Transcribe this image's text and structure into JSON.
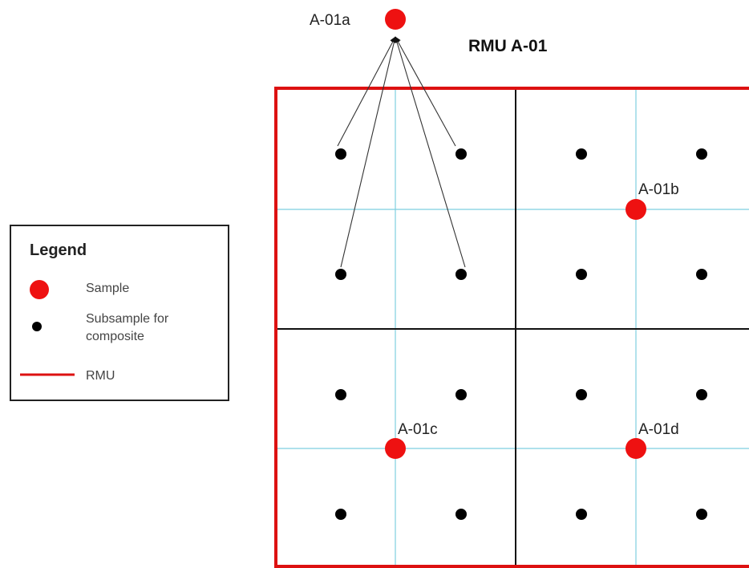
{
  "title": "RMU A-01",
  "samples": [
    {
      "id": "a",
      "label": "A-01a"
    },
    {
      "id": "b",
      "label": "A-01b"
    },
    {
      "id": "c",
      "label": "A-01c"
    },
    {
      "id": "d",
      "label": "A-01d"
    }
  ],
  "legend": {
    "title": "Legend",
    "sample": "Sample",
    "subsample_line1": "Subsample for",
    "subsample_line2": "composite",
    "rmu": "RMU"
  },
  "colors": {
    "sample": "#ee1111",
    "subsample": "#000000",
    "rmu_border": "#dd1111",
    "grid_fine": "#7ecfe0",
    "grid_quadrant": "#000000"
  }
}
